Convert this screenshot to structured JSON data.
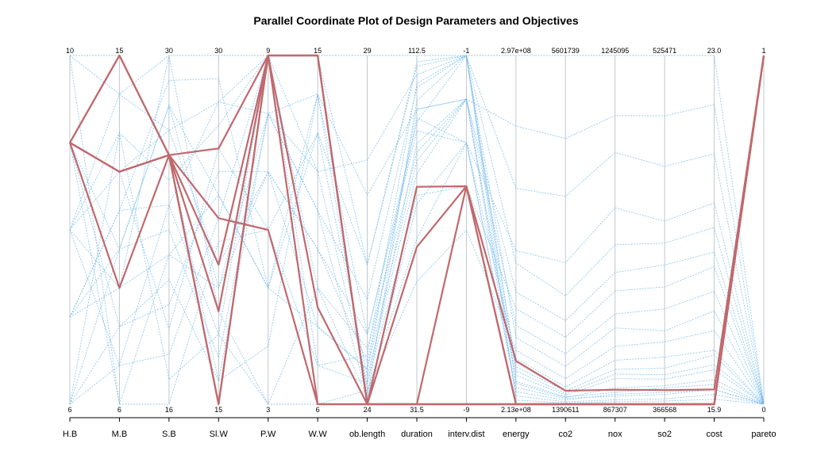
{
  "chart_data": {
    "type": "parallel-coordinates",
    "title": "Parallel Coordinate Plot of Design Parameters and Objectives",
    "axes": [
      {
        "name": "H.B",
        "top": "10",
        "bottom": "6",
        "min": 6,
        "max": 10
      },
      {
        "name": "M.B",
        "top": "15",
        "bottom": "6",
        "min": 6,
        "max": 15
      },
      {
        "name": "S.B",
        "top": "30",
        "bottom": "16",
        "min": 16,
        "max": 30
      },
      {
        "name": "Sl.W",
        "top": "30",
        "bottom": "15",
        "min": 15,
        "max": 30
      },
      {
        "name": "P.W",
        "top": "9",
        "bottom": "3",
        "min": 3,
        "max": 9
      },
      {
        "name": "W.W",
        "top": "15",
        "bottom": "6",
        "min": 6,
        "max": 15
      },
      {
        "name": "ob.length",
        "top": "29",
        "bottom": "24",
        "min": 24,
        "max": 29
      },
      {
        "name": "duration",
        "top": "112.5",
        "bottom": "31.5",
        "min": 31.5,
        "max": 112.5
      },
      {
        "name": "interv.dist",
        "top": "-1",
        "bottom": "-9",
        "min": -9,
        "max": -1
      },
      {
        "name": "energy",
        "top": "2.97e+08",
        "bottom": "2.13e+08",
        "min": 213000000,
        "max": 297000000
      },
      {
        "name": "co2",
        "top": "5601739",
        "bottom": "1390611",
        "min": 1390611,
        "max": 5601739
      },
      {
        "name": "nox",
        "top": "1245095",
        "bottom": "867307",
        "min": 867307,
        "max": 1245095
      },
      {
        "name": "so2",
        "top": "525471",
        "bottom": "366568",
        "min": 366568,
        "max": 525471
      },
      {
        "name": "cost",
        "top": "23.0",
        "bottom": "15.9",
        "min": 15.9,
        "max": 23.0
      },
      {
        "name": "pareto",
        "top": "1",
        "bottom": "0",
        "min": 0,
        "max": 1
      }
    ],
    "series_pareto": [
      [
        9,
        15,
        26,
        26,
        9,
        15,
        24,
        31.5,
        -9,
        213000000,
        1390611,
        867307,
        366568,
        15.9,
        1
      ],
      [
        9,
        9,
        26,
        15,
        9,
        15,
        24,
        31.5,
        -9,
        213000000,
        1390611,
        867307,
        366568,
        15.9,
        1
      ],
      [
        9,
        12,
        26,
        21,
        9,
        15,
        24,
        82,
        -4,
        213000000,
        1390611,
        867307,
        366568,
        15.9,
        1
      ],
      [
        9,
        12,
        26,
        19,
        9,
        6,
        24,
        31.5,
        -4,
        213000000,
        1390611,
        867307,
        366568,
        15.9,
        1
      ],
      [
        9,
        12,
        26,
        15,
        9,
        8.5,
        24,
        68,
        -4,
        223400000,
        1553000,
        883000,
        373000,
        16.2,
        1
      ],
      [
        9,
        15,
        26,
        23,
        6,
        6,
        24,
        31.5,
        -9,
        213000000,
        1390611,
        867307,
        366568,
        15.9,
        1
      ]
    ],
    "series_other": [
      [
        10,
        14,
        30,
        30,
        9,
        15,
        29,
        112.5,
        -1,
        297000000,
        5601739,
        1245095,
        525471,
        23.0,
        0
      ],
      [
        8,
        12,
        27,
        28,
        8,
        14,
        27,
        100,
        -2,
        280000000,
        4600000,
        1180000,
        498000,
        22.0,
        0
      ],
      [
        7,
        9,
        22,
        24,
        5,
        13,
        26,
        110,
        -1,
        265000000,
        3900000,
        1140000,
        475000,
        21.0,
        0
      ],
      [
        6,
        8,
        20,
        25,
        7,
        10,
        25,
        95,
        -3,
        250000000,
        3100000,
        1080000,
        450000,
        20.0,
        0
      ],
      [
        9,
        10,
        28,
        20,
        8,
        11,
        25.5,
        105,
        -1,
        247000000,
        2700000,
        1040000,
        440000,
        19.5,
        0
      ],
      [
        8,
        7,
        24,
        18,
        3,
        9,
        24.8,
        90,
        -2,
        240000000,
        2400000,
        1010000,
        430000,
        19.0,
        0
      ],
      [
        10,
        6,
        16,
        22,
        6,
        7,
        24.3,
        80,
        -4,
        236000000,
        2200000,
        990000,
        420000,
        18.7,
        0
      ],
      [
        7,
        11,
        29,
        29,
        5,
        8,
        24.5,
        100,
        -2,
        232000000,
        2000000,
        965000,
        410000,
        18.2,
        0
      ],
      [
        6,
        13,
        25,
        27,
        9,
        12,
        27.5,
        108,
        -1,
        229000000,
        1850000,
        950000,
        400000,
        17.8,
        0
      ],
      [
        9,
        8,
        21,
        16,
        4,
        14,
        24.2,
        60,
        -5,
        226000000,
        1700000,
        930000,
        395000,
        17.4,
        0
      ],
      [
        8,
        14,
        27,
        21,
        7,
        10,
        24.6,
        98,
        -3,
        224000000,
        1600000,
        915000,
        388000,
        17.0,
        0
      ],
      [
        7,
        10,
        23,
        17,
        8,
        11,
        24.1,
        102,
        -1,
        222000000,
        1550000,
        905000,
        383000,
        16.9,
        0
      ],
      [
        9,
        12,
        19,
        26,
        6,
        13,
        24.4,
        85,
        -2,
        220000000,
        1500000,
        895000,
        378000,
        16.6,
        0
      ],
      [
        6,
        7,
        18,
        23,
        9,
        7,
        24.7,
        106,
        -1,
        218000000,
        1470000,
        885000,
        375000,
        16.4,
        0
      ],
      [
        8,
        9,
        30,
        19,
        3,
        6,
        24.2,
        70,
        -3,
        216000000,
        1440000,
        878000,
        372000,
        16.2,
        0
      ],
      [
        10,
        15,
        26,
        16,
        8,
        12,
        24.3,
        92,
        -2,
        215000000,
        1420000,
        872000,
        369000,
        16.1,
        0
      ],
      [
        7,
        11,
        24,
        28,
        9,
        15,
        26,
        111,
        -1,
        214000000,
        1405000,
        870000,
        368000,
        16.0,
        0
      ],
      [
        9,
        6,
        22,
        20,
        7,
        8,
        24.5,
        88,
        -2,
        218500000,
        1480000,
        880000,
        374000,
        16.3,
        0
      ],
      [
        6,
        10,
        28,
        24,
        5,
        14,
        25,
        97,
        -1,
        221000000,
        1520000,
        900000,
        380000,
        16.7,
        0
      ],
      [
        8,
        13,
        17,
        18,
        9,
        9,
        24.1,
        78,
        -3,
        217000000,
        1460000,
        876000,
        371000,
        16.2,
        0
      ]
    ]
  }
}
